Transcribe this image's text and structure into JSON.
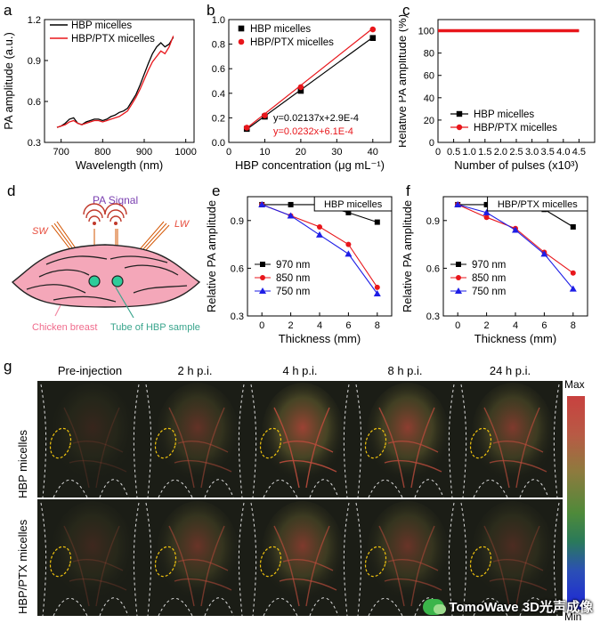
{
  "panels": {
    "a": {
      "letter": "a",
      "title": "",
      "xlabel": "Wavelength (nm)",
      "ylabel": "PA amplitude (a.u.)",
      "xticks": [
        "700",
        "800",
        "900",
        "1000"
      ],
      "yticks": [
        "0.3",
        "0.6",
        "0.9",
        "1.2"
      ],
      "legend": [
        "HBP micelles",
        "HBP/PTX micelles"
      ]
    },
    "b": {
      "letter": "b",
      "xlabel": "HBP concentration (μg mL⁻¹)",
      "ylabel": "PA amplitude (a.u.)",
      "xticks": [
        "0",
        "10",
        "20",
        "30",
        "40"
      ],
      "yticks": [
        "0.0",
        "0.2",
        "0.4",
        "0.6",
        "0.8",
        "1.0"
      ],
      "legend": [
        "HBP micelles",
        "HBP/PTX micelles"
      ],
      "fit1": "y=0.02137x+2.9E-4",
      "fit2": "y=0.0232x+6.1E-4"
    },
    "c": {
      "letter": "c",
      "xlabel": "Number of pulses (x10³)",
      "ylabel": "Relative PA amplitude (%)",
      "xticks": [
        "0",
        "0.5",
        "1.0",
        "1.5",
        "2.0",
        "2.5",
        "3.0",
        "3.5",
        "4.0",
        "4.5"
      ],
      "yticks": [
        "0",
        "20",
        "40",
        "60",
        "80",
        "100"
      ],
      "legend": [
        "HBP micelles",
        "HBP/PTX micelles"
      ]
    },
    "d": {
      "letter": "d",
      "pa_signal": "PA Signal",
      "sw": "SW",
      "lw": "LW",
      "chicken": "Chicken breast",
      "tube": "Tube of HBP sample"
    },
    "e": {
      "letter": "e",
      "title": "HBP micelles",
      "xlabel": "Thickness (mm)",
      "ylabel": "Relative PA amplitude",
      "xticks": [
        "0",
        "2",
        "4",
        "6",
        "8"
      ],
      "yticks": [
        "0.3",
        "0.6",
        "0.9"
      ],
      "legend": [
        "970 nm",
        "850 nm",
        "750 nm"
      ]
    },
    "f": {
      "letter": "f",
      "title": "HBP/PTX micelles",
      "xlabel": "Thickness (mm)",
      "ylabel": "Relative PA amplitude",
      "xticks": [
        "0",
        "2",
        "4",
        "6",
        "8"
      ],
      "yticks": [
        "0.3",
        "0.6",
        "0.9"
      ],
      "legend": [
        "970 nm",
        "850 nm",
        "750 nm"
      ]
    },
    "g": {
      "letter": "g",
      "times": [
        "Pre-injection",
        "2 h p.i.",
        "4 h p.i.",
        "8 h p.i.",
        "24 h p.i."
      ],
      "rows": [
        "HBP micelles",
        "HBP/PTX micelles"
      ],
      "cbar_max": "Max",
      "cbar_min": "Min",
      "watermark": "TomoWave 3D光声成像"
    }
  },
  "chart_data": [
    {
      "type": "line",
      "panel": "a",
      "title": "",
      "xlabel": "Wavelength (nm)",
      "ylabel": "PA amplitude (a.u.)",
      "xlim": [
        660,
        1020
      ],
      "ylim": [
        0.3,
        1.2
      ],
      "series": [
        {
          "name": "HBP micelles",
          "color": "#000000",
          "x": [
            690,
            700,
            710,
            720,
            730,
            740,
            750,
            760,
            770,
            780,
            790,
            800,
            810,
            820,
            830,
            840,
            850,
            860,
            870,
            880,
            890,
            900,
            910,
            920,
            930,
            940,
            950,
            960,
            970
          ],
          "y": [
            0.41,
            0.42,
            0.44,
            0.47,
            0.48,
            0.44,
            0.43,
            0.45,
            0.46,
            0.47,
            0.47,
            0.46,
            0.47,
            0.49,
            0.5,
            0.52,
            0.53,
            0.55,
            0.6,
            0.65,
            0.72,
            0.8,
            0.88,
            0.95,
            1.0,
            1.03,
            1.0,
            1.02,
            1.07
          ]
        },
        {
          "name": "HBP/PTX micelles",
          "color": "#e8161b",
          "x": [
            690,
            700,
            710,
            720,
            730,
            740,
            750,
            760,
            770,
            780,
            790,
            800,
            810,
            820,
            830,
            840,
            850,
            860,
            870,
            880,
            890,
            900,
            910,
            920,
            930,
            940,
            950,
            960,
            970
          ],
          "y": [
            0.41,
            0.42,
            0.43,
            0.45,
            0.46,
            0.44,
            0.43,
            0.44,
            0.45,
            0.46,
            0.46,
            0.45,
            0.46,
            0.47,
            0.48,
            0.49,
            0.51,
            0.53,
            0.58,
            0.63,
            0.69,
            0.76,
            0.83,
            0.89,
            0.93,
            0.97,
            0.95,
            1.0,
            1.08
          ]
        }
      ]
    },
    {
      "type": "scatter",
      "panel": "b",
      "xlabel": "HBP concentration (μg mL⁻¹)",
      "ylabel": "PA amplitude (a.u.)",
      "xlim": [
        0,
        45
      ],
      "ylim": [
        0,
        1.0
      ],
      "series": [
        {
          "name": "HBP micelles",
          "color": "#000000",
          "marker": "square",
          "x": [
            5,
            10,
            20,
            40
          ],
          "y": [
            0.11,
            0.21,
            0.42,
            0.85
          ],
          "fit": {
            "slope": 0.02137,
            "intercept": 0.00029
          }
        },
        {
          "name": "HBP/PTX micelles",
          "color": "#e8161b",
          "marker": "circle",
          "x": [
            5,
            10,
            20,
            40
          ],
          "y": [
            0.12,
            0.22,
            0.45,
            0.92
          ],
          "fit": {
            "slope": 0.0232,
            "intercept": 0.00061
          }
        }
      ]
    },
    {
      "type": "line",
      "panel": "c",
      "xlabel": "Number of pulses (x10³)",
      "ylabel": "Relative PA amplitude (%)",
      "xlim": [
        0,
        5.0
      ],
      "ylim": [
        0,
        110
      ],
      "series": [
        {
          "name": "HBP micelles",
          "color": "#000000",
          "x_range": [
            0,
            4.5
          ],
          "value": 100
        },
        {
          "name": "HBP/PTX micelles",
          "color": "#e8161b",
          "x_range": [
            0,
            4.5
          ],
          "value": 100
        }
      ]
    },
    {
      "type": "line",
      "panel": "e",
      "title": "HBP micelles",
      "xlabel": "Thickness (mm)",
      "ylabel": "Relative PA amplitude",
      "xlim": [
        -1,
        9
      ],
      "ylim": [
        0.3,
        1.05
      ],
      "series": [
        {
          "name": "970 nm",
          "color": "#000000",
          "marker": "square",
          "x": [
            0,
            2,
            4,
            6,
            8
          ],
          "y": [
            1.0,
            1.0,
            1.0,
            0.95,
            0.89
          ]
        },
        {
          "name": "850 nm",
          "color": "#e8161b",
          "marker": "circle",
          "x": [
            0,
            2,
            4,
            6,
            8
          ],
          "y": [
            1.0,
            0.93,
            0.86,
            0.75,
            0.48
          ]
        },
        {
          "name": "750 nm",
          "color": "#1e1ee6",
          "marker": "triangle",
          "x": [
            0,
            2,
            4,
            6,
            8
          ],
          "y": [
            1.0,
            0.93,
            0.81,
            0.69,
            0.44
          ]
        }
      ]
    },
    {
      "type": "line",
      "panel": "f",
      "title": "HBP/PTX micelles",
      "xlabel": "Thickness (mm)",
      "ylabel": "Relative PA amplitude",
      "xlim": [
        -1,
        9
      ],
      "ylim": [
        0.3,
        1.05
      ],
      "series": [
        {
          "name": "970 nm",
          "color": "#000000",
          "marker": "square",
          "x": [
            0,
            2,
            4,
            6,
            8
          ],
          "y": [
            1.0,
            1.0,
            1.0,
            0.97,
            0.86
          ]
        },
        {
          "name": "850 nm",
          "color": "#e8161b",
          "marker": "circle",
          "x": [
            0,
            2,
            4,
            6,
            8
          ],
          "y": [
            1.0,
            0.92,
            0.85,
            0.7,
            0.57
          ]
        },
        {
          "name": "750 nm",
          "color": "#1e1ee6",
          "marker": "triangle",
          "x": [
            0,
            2,
            4,
            6,
            8
          ],
          "y": [
            1.0,
            0.95,
            0.84,
            0.69,
            0.47
          ]
        }
      ]
    }
  ]
}
